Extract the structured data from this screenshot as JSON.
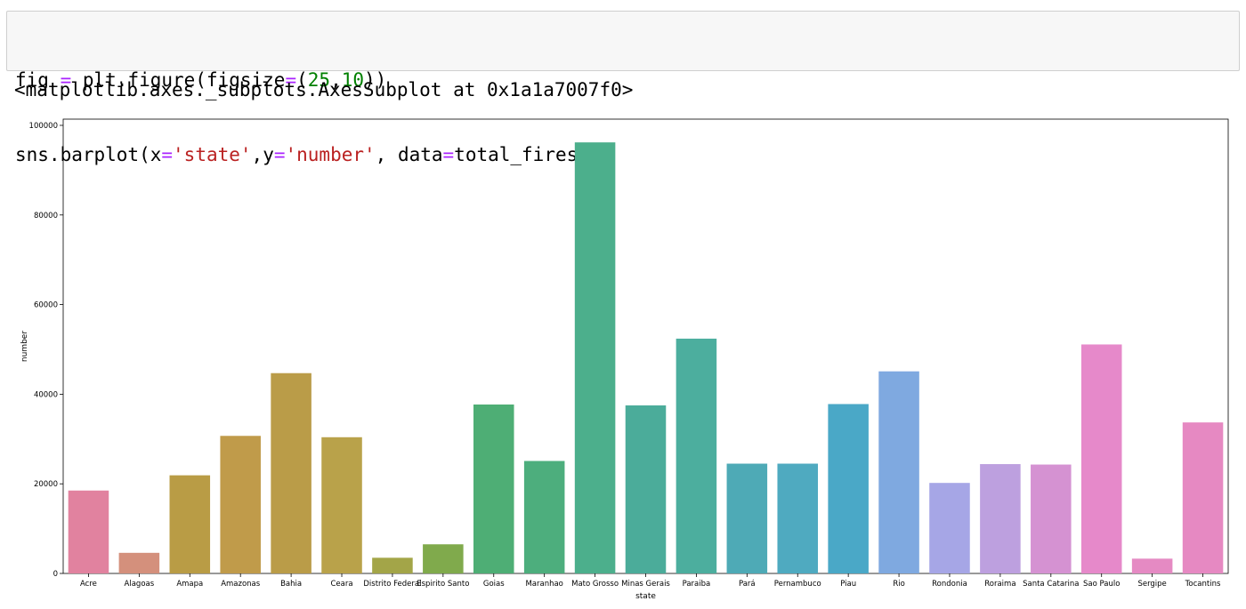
{
  "notebook": {
    "code_lines": [
      [
        {
          "t": "fig ",
          "c": ""
        },
        {
          "t": "=",
          "c": "op"
        },
        {
          "t": " plt.figure(figsize",
          "c": ""
        },
        {
          "t": "=",
          "c": "op"
        },
        {
          "t": "(",
          "c": ""
        },
        {
          "t": "25",
          "c": "num"
        },
        {
          "t": ",",
          "c": ""
        },
        {
          "t": "10",
          "c": "num"
        },
        {
          "t": "))",
          "c": ""
        }
      ],
      [
        {
          "t": "sns.barplot(x",
          "c": ""
        },
        {
          "t": "=",
          "c": "op"
        },
        {
          "t": "'state'",
          "c": "str"
        },
        {
          "t": ",y",
          "c": ""
        },
        {
          "t": "=",
          "c": "op"
        },
        {
          "t": "'number'",
          "c": "str"
        },
        {
          "t": ", data",
          "c": ""
        },
        {
          "t": "=",
          "c": "op"
        },
        {
          "t": "total_fires)",
          "c": ""
        }
      ]
    ],
    "output_text": "<matplotlib.axes._subplots.AxesSubplot at 0x1a1a7007f0>"
  },
  "chart_data": {
    "type": "bar",
    "xlabel": "state",
    "ylabel": "number",
    "ylim": [
      0,
      100000
    ],
    "yticks": [
      0,
      20000,
      40000,
      60000,
      80000,
      100000
    ],
    "grid": false,
    "categories": [
      "Acre",
      "Alagoas",
      "Amapa",
      "Amazonas",
      "Bahia",
      "Ceara",
      "Distrito Federal",
      "Espirito Santo",
      "Goias",
      "Maranhao",
      "Mato Grosso",
      "Minas Gerais",
      "Paraiba",
      "Pará",
      "Pernambuco",
      "Piau",
      "Rio",
      "Rondonia",
      "Roraima",
      "Santa Catarina",
      "Sao Paulo",
      "Sergipe",
      "Tocantins"
    ],
    "values": [
      18500,
      4600,
      21900,
      30700,
      44700,
      30400,
      3500,
      6500,
      37700,
      25100,
      96200,
      37500,
      52400,
      24500,
      24500,
      37800,
      45100,
      20200,
      24400,
      24300,
      51100,
      3300,
      33700
    ],
    "colors": [
      "#e1829f",
      "#d4907c",
      "#b99c45",
      "#c09b4a",
      "#ba9c48",
      "#b9a24a",
      "#a3a548",
      "#80aa4c",
      "#4eae75",
      "#4dae7d",
      "#4caf8c",
      "#4bac9a",
      "#4cae9e",
      "#4eaab6",
      "#4faac0",
      "#4aa8c7",
      "#7fa9e0",
      "#a6a6e6",
      "#bda0df",
      "#d592d2",
      "#e689ca",
      "#e58ac3",
      "#e689c2"
    ]
  }
}
